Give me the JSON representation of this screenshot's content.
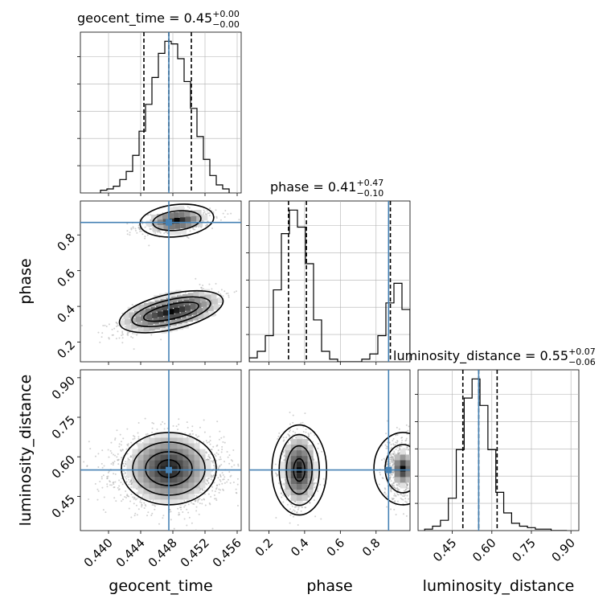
{
  "chart_data": {
    "type": "corner",
    "parameters": [
      "geocent_time",
      "phase",
      "luminosity_distance"
    ],
    "truth": {
      "geocent_time": 0.4475,
      "phase": 0.87,
      "luminosity_distance": 0.55
    },
    "ranges": {
      "geocent_time": [
        0.4365,
        0.4565
      ],
      "phase": [
        0.09,
        0.99
      ],
      "luminosity_distance": [
        0.32,
        0.93
      ]
    },
    "ticks": {
      "geocent_time": [
        0.44,
        0.444,
        0.448,
        0.452,
        0.456
      ],
      "phase": [
        0.2,
        0.4,
        0.6,
        0.8
      ],
      "luminosity_distance": [
        0.45,
        0.6,
        0.75,
        0.9
      ]
    },
    "tick_labels": {
      "geocent_time": [
        "0.440",
        "0.444",
        "0.448",
        "0.452",
        "0.456"
      ],
      "phase": [
        "0.2",
        "0.4",
        "0.6",
        "0.8"
      ],
      "luminosity_distance": [
        "0.45",
        "0.60",
        "0.75",
        "0.90"
      ]
    },
    "axis_labels": {
      "x": [
        "geocent_time",
        "phase",
        "luminosity_distance"
      ],
      "y": [
        "phase",
        "luminosity_distance"
      ]
    },
    "titles": [
      {
        "name": "geocent_time",
        "value": "0.45",
        "plus": "+0.00",
        "minus": "−0.00"
      },
      {
        "name": "phase",
        "value": "0.41",
        "plus": "+0.47",
        "minus": "−0.10"
      },
      {
        "name": "luminosity_distance",
        "value": "0.55",
        "plus": "+0.07",
        "minus": "−0.06"
      }
    ],
    "quantiles": {
      "geocent_time": [
        0.4444,
        0.4475,
        0.4503
      ],
      "phase": [
        0.31,
        0.41,
        0.88
      ],
      "luminosity_distance": [
        0.49,
        0.55,
        0.62
      ]
    },
    "histograms": {
      "geocent_time": {
        "edges": [
          0.439,
          0.4398,
          0.4406,
          0.4414,
          0.4422,
          0.443,
          0.4438,
          0.4446,
          0.4454,
          0.4462,
          0.447,
          0.4478,
          0.4486,
          0.4494,
          0.4502,
          0.451,
          0.4518,
          0.4526,
          0.4534,
          0.4542,
          0.455
        ],
        "counts": [
          2,
          3,
          5,
          10,
          16,
          28,
          46,
          66,
          86,
          104,
          113,
          111,
          100,
          83,
          63,
          42,
          25,
          13,
          6,
          3
        ]
      },
      "phase": {
        "edges": [
          0.09,
          0.135,
          0.18,
          0.225,
          0.27,
          0.315,
          0.36,
          0.405,
          0.45,
          0.495,
          0.54,
          0.585,
          0.63,
          0.675,
          0.72,
          0.765,
          0.81,
          0.855,
          0.9,
          0.945,
          0.99
        ],
        "counts": [
          3,
          8,
          20,
          55,
          98,
          116,
          103,
          75,
          32,
          8,
          2,
          0,
          0,
          0,
          2,
          6,
          20,
          45,
          60,
          40
        ]
      },
      "luminosity_distance": {
        "edges": [
          0.345,
          0.375,
          0.405,
          0.435,
          0.465,
          0.495,
          0.525,
          0.555,
          0.585,
          0.615,
          0.645,
          0.675,
          0.705,
          0.735,
          0.765,
          0.795,
          0.825,
          0.855,
          0.885
        ],
        "counts": [
          1,
          3,
          7,
          22,
          55,
          90,
          103,
          85,
          55,
          26,
          12,
          5,
          3,
          2,
          1,
          1,
          0,
          0
        ]
      }
    },
    "colors": {
      "truth": "#4682b4",
      "contour": "#000000",
      "grid": "#b0b0b0",
      "points": "#9a9a9a"
    },
    "grid": true
  }
}
